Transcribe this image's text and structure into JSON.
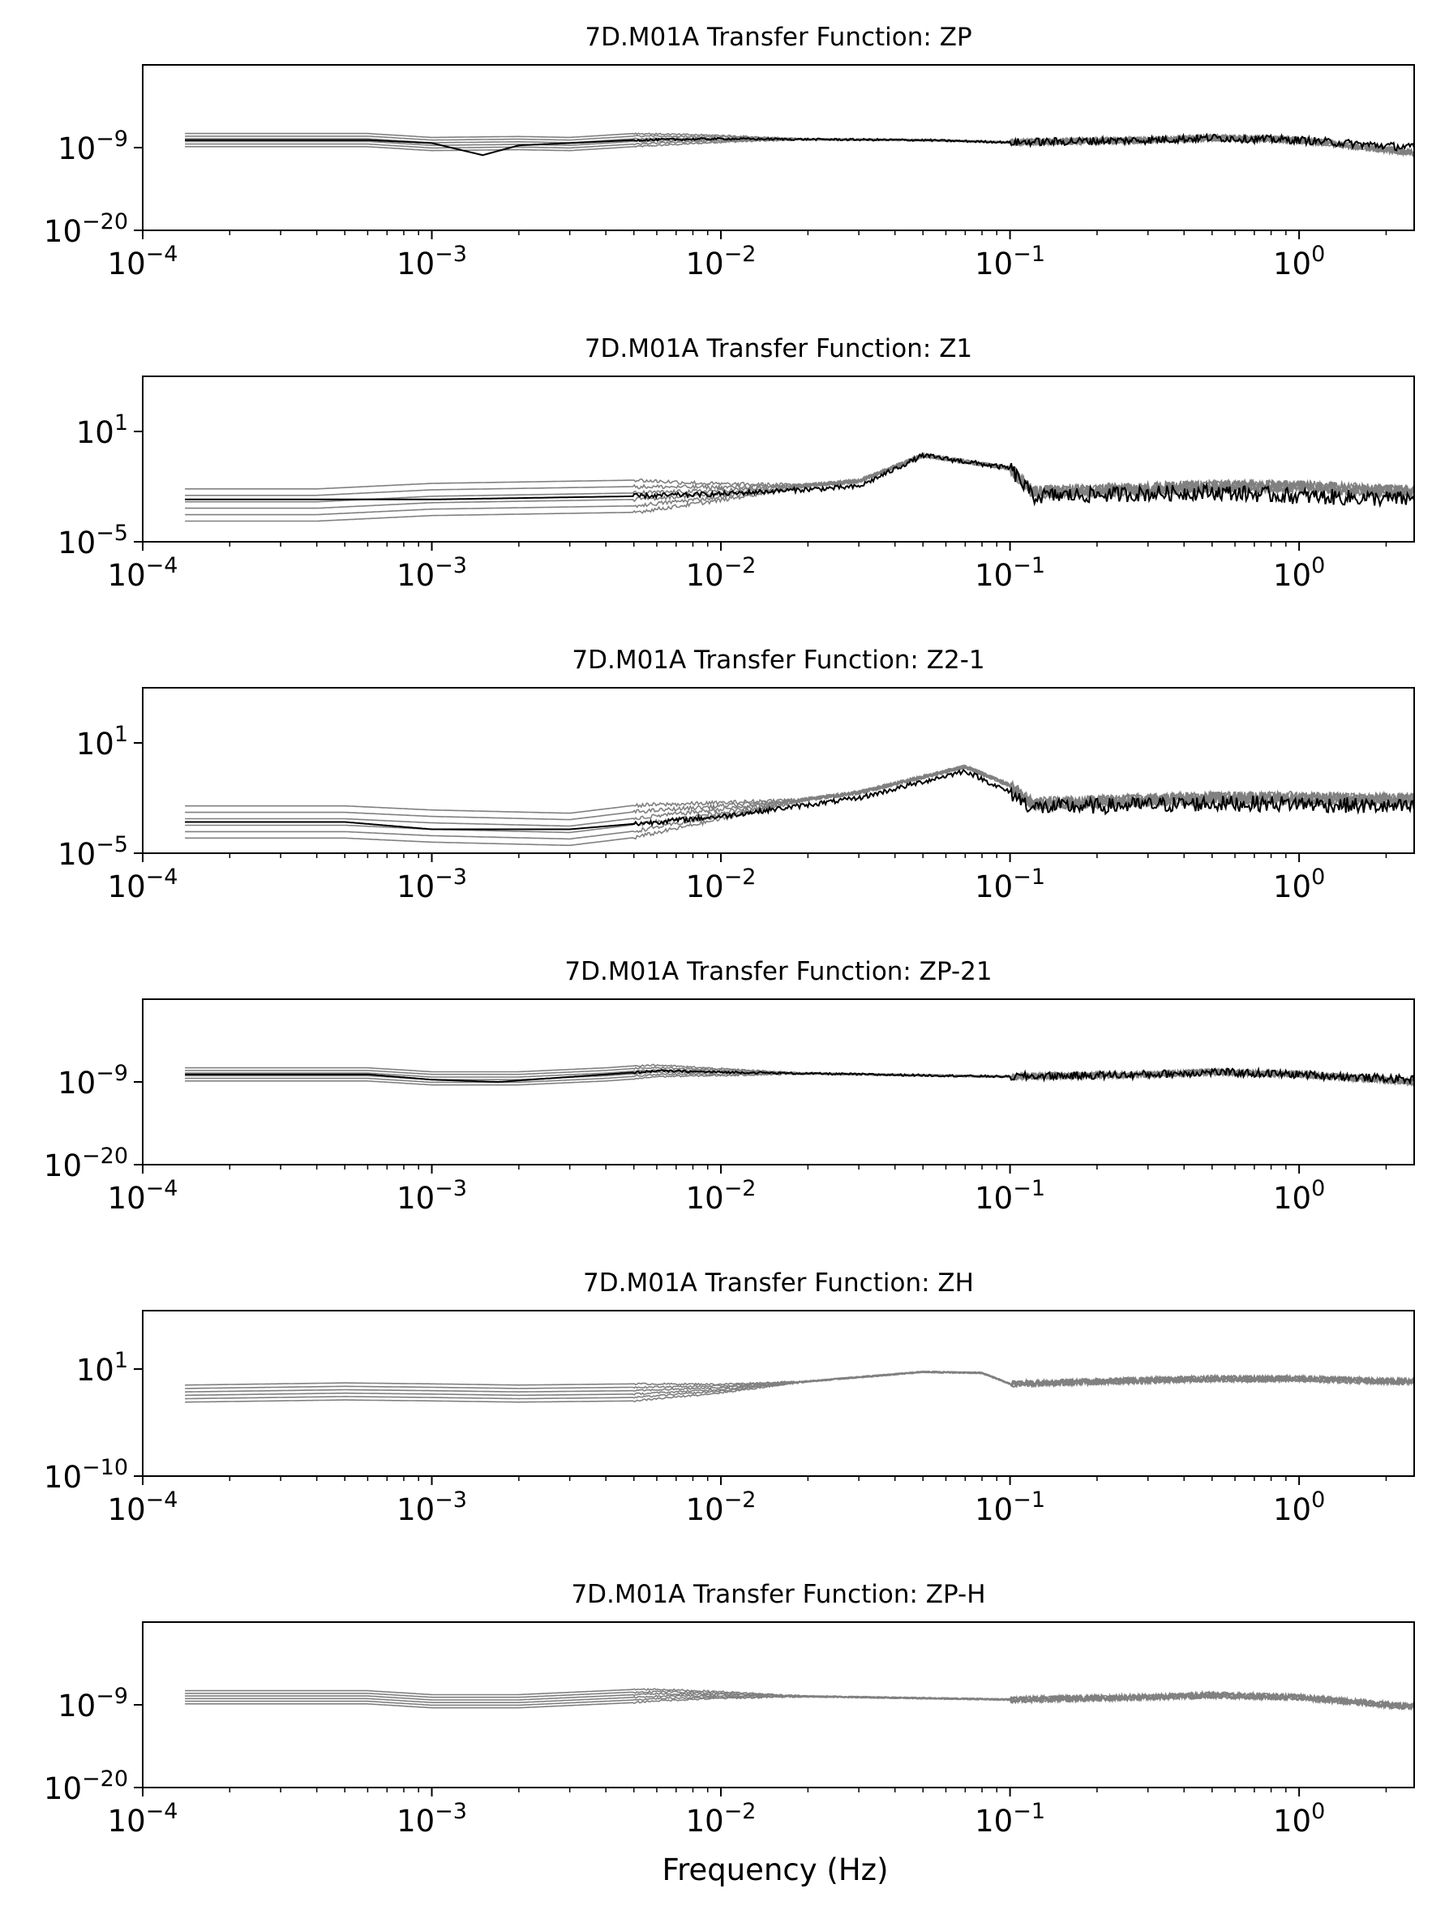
{
  "figure": {
    "xlabel": "Frequency (Hz)"
  },
  "colors": {
    "individual": "#808080",
    "average": "#000000",
    "axes": "#000000",
    "background": "#ffffff"
  },
  "chart_data": [
    {
      "type": "line",
      "title": "7D.M01A Transfer Function: ZP",
      "xscale": "log",
      "yscale": "log",
      "xlim": [
        0.0001,
        2.5
      ],
      "ylim": [
        1e-20,
        100.0
      ],
      "xticks": [
        "10^-4",
        "10^-3",
        "10^-2",
        "10^-1",
        "10^0"
      ],
      "yticks": [
        "10^-9",
        "10^-20"
      ],
      "grid": false,
      "series": [
        {
          "style": "individual",
          "count": 6,
          "x": [
            0.00014,
            0.0006,
            0.001,
            0.002,
            0.003,
            0.005,
            0.01,
            0.05,
            0.1,
            0.3,
            0.5,
            1.0,
            2.5
          ],
          "y": [
            1e-08,
            1e-08,
            3e-09,
            4e-09,
            3e-09,
            1e-08,
            1.5e-08,
            1e-08,
            5e-09,
            1e-08,
            2e-08,
            1e-08,
            2e-10
          ]
        },
        {
          "style": "average",
          "x": [
            0.00014,
            0.0006,
            0.001,
            0.0015,
            0.002,
            0.003,
            0.005,
            0.01,
            0.05,
            0.1,
            0.3,
            0.5,
            1.0,
            2.5
          ],
          "y": [
            1e-08,
            1e-08,
            4e-09,
            1e-10,
            2e-09,
            4e-09,
            1e-08,
            1.5e-08,
            1e-08,
            5e-09,
            1e-08,
            2e-08,
            1e-08,
            1e-09
          ]
        }
      ]
    },
    {
      "type": "line",
      "title": "7D.M01A Transfer Function: Z1",
      "xscale": "log",
      "yscale": "log",
      "xlim": [
        0.0001,
        2.5
      ],
      "ylim": [
        1e-05,
        10000.0
      ],
      "xticks": [
        "10^-4",
        "10^-3",
        "10^-2",
        "10^-1",
        "10^0"
      ],
      "yticks": [
        "10^1",
        "10^-5"
      ],
      "grid": false,
      "series": [
        {
          "style": "individual",
          "count": 6,
          "x": [
            0.00014,
            0.0004,
            0.001,
            0.005,
            0.01,
            0.03,
            0.05,
            0.1,
            0.12,
            0.5,
            1.0,
            2.5
          ],
          "y": [
            0.001,
            0.001,
            0.002,
            0.003,
            0.005,
            0.02,
            0.5,
            0.1,
            0.005,
            0.01,
            0.01,
            0.005
          ]
        },
        {
          "style": "average",
          "x": [
            0.00014,
            0.0004,
            0.001,
            0.005,
            0.01,
            0.03,
            0.05,
            0.1,
            0.12,
            0.5,
            1.0,
            2.5
          ],
          "y": [
            0.002,
            0.002,
            0.002,
            0.003,
            0.004,
            0.01,
            0.5,
            0.1,
            0.003,
            0.005,
            0.003,
            0.002
          ]
        }
      ]
    },
    {
      "type": "line",
      "title": "7D.M01A Transfer Function: Z2-1",
      "xscale": "log",
      "yscale": "log",
      "xlim": [
        0.0001,
        2.5
      ],
      "ylim": [
        1e-05,
        10000.0
      ],
      "xticks": [
        "10^-4",
        "10^-3",
        "10^-2",
        "10^-1",
        "10^0"
      ],
      "yticks": [
        "10^1",
        "10^-5"
      ],
      "grid": false,
      "series": [
        {
          "style": "individual",
          "count": 6,
          "x": [
            0.00014,
            0.0005,
            0.001,
            0.003,
            0.01,
            0.03,
            0.07,
            0.1,
            0.12,
            0.5,
            1.0,
            2.5
          ],
          "y": [
            0.0005,
            0.0005,
            0.0003,
            0.0002,
            0.002,
            0.02,
            0.5,
            0.05,
            0.005,
            0.01,
            0.01,
            0.008
          ]
        },
        {
          "style": "average",
          "x": [
            0.00014,
            0.0005,
            0.001,
            0.003,
            0.01,
            0.03,
            0.07,
            0.1,
            0.12,
            0.5,
            1.0,
            2.5
          ],
          "y": [
            0.0005,
            0.0005,
            0.0002,
            0.0002,
            0.001,
            0.01,
            0.3,
            0.02,
            0.003,
            0.005,
            0.005,
            0.003
          ]
        }
      ]
    },
    {
      "type": "line",
      "title": "7D.M01A Transfer Function: ZP-21",
      "xscale": "log",
      "yscale": "log",
      "xlim": [
        0.0001,
        2.5
      ],
      "ylim": [
        1e-20,
        100.0
      ],
      "xticks": [
        "10^-4",
        "10^-3",
        "10^-2",
        "10^-1",
        "10^0"
      ],
      "yticks": [
        "10^-9",
        "10^-20"
      ],
      "grid": false,
      "series": [
        {
          "style": "individual",
          "count": 6,
          "x": [
            0.00014,
            0.0006,
            0.001,
            0.002,
            0.004,
            0.006,
            0.01,
            0.1,
            0.3,
            0.5,
            1.0,
            2.5
          ],
          "y": [
            1e-08,
            1e-08,
            3e-09,
            3e-09,
            1e-08,
            3e-08,
            2e-08,
            5e-09,
            1e-08,
            2e-08,
            1e-08,
            1e-09
          ]
        },
        {
          "style": "average",
          "x": [
            0.00014,
            0.0006,
            0.001,
            0.0017,
            0.004,
            0.006,
            0.01,
            0.1,
            0.3,
            0.5,
            1.0,
            2.5
          ],
          "y": [
            1e-08,
            1e-08,
            2e-09,
            1e-09,
            1e-08,
            3e-08,
            2e-08,
            5e-09,
            1e-08,
            2e-08,
            1e-08,
            2e-09
          ]
        }
      ]
    },
    {
      "type": "line",
      "title": "7D.M01A Transfer Function: ZH",
      "xscale": "log",
      "yscale": "log",
      "xlim": [
        0.0001,
        2.5
      ],
      "ylim": [
        1e-10,
        10000000.0
      ],
      "xticks": [
        "10^-4",
        "10^-3",
        "10^-2",
        "10^-1",
        "10^0"
      ],
      "yticks": [
        "10^1",
        "10^-10"
      ],
      "grid": false,
      "series": [
        {
          "style": "individual",
          "count": 6,
          "x": [
            0.00014,
            0.0005,
            0.001,
            0.002,
            0.005,
            0.01,
            0.05,
            0.08,
            0.1,
            0.5,
            1.0,
            2.5
          ],
          "y": [
            0.03,
            0.05,
            0.04,
            0.03,
            0.04,
            0.1,
            5,
            4,
            0.3,
            1,
            1,
            0.5
          ]
        }
      ]
    },
    {
      "type": "line",
      "title": "7D.M01A Transfer Function: ZP-H",
      "xscale": "log",
      "yscale": "log",
      "xlim": [
        0.0001,
        2.5
      ],
      "ylim": [
        1e-20,
        100.0
      ],
      "xticks": [
        "10^-4",
        "10^-3",
        "10^-2",
        "10^-1",
        "10^0"
      ],
      "yticks": [
        "10^-9",
        "10^-20"
      ],
      "grid": false,
      "series": [
        {
          "style": "individual",
          "count": 6,
          "x": [
            0.00014,
            0.0006,
            0.001,
            0.002,
            0.004,
            0.006,
            0.01,
            0.1,
            0.3,
            0.5,
            1.0,
            2.5
          ],
          "y": [
            1e-08,
            1e-08,
            3e-09,
            3e-09,
            1e-08,
            2e-08,
            2e-08,
            5e-09,
            1e-08,
            2e-08,
            1e-08,
            5e-10
          ]
        }
      ]
    }
  ]
}
